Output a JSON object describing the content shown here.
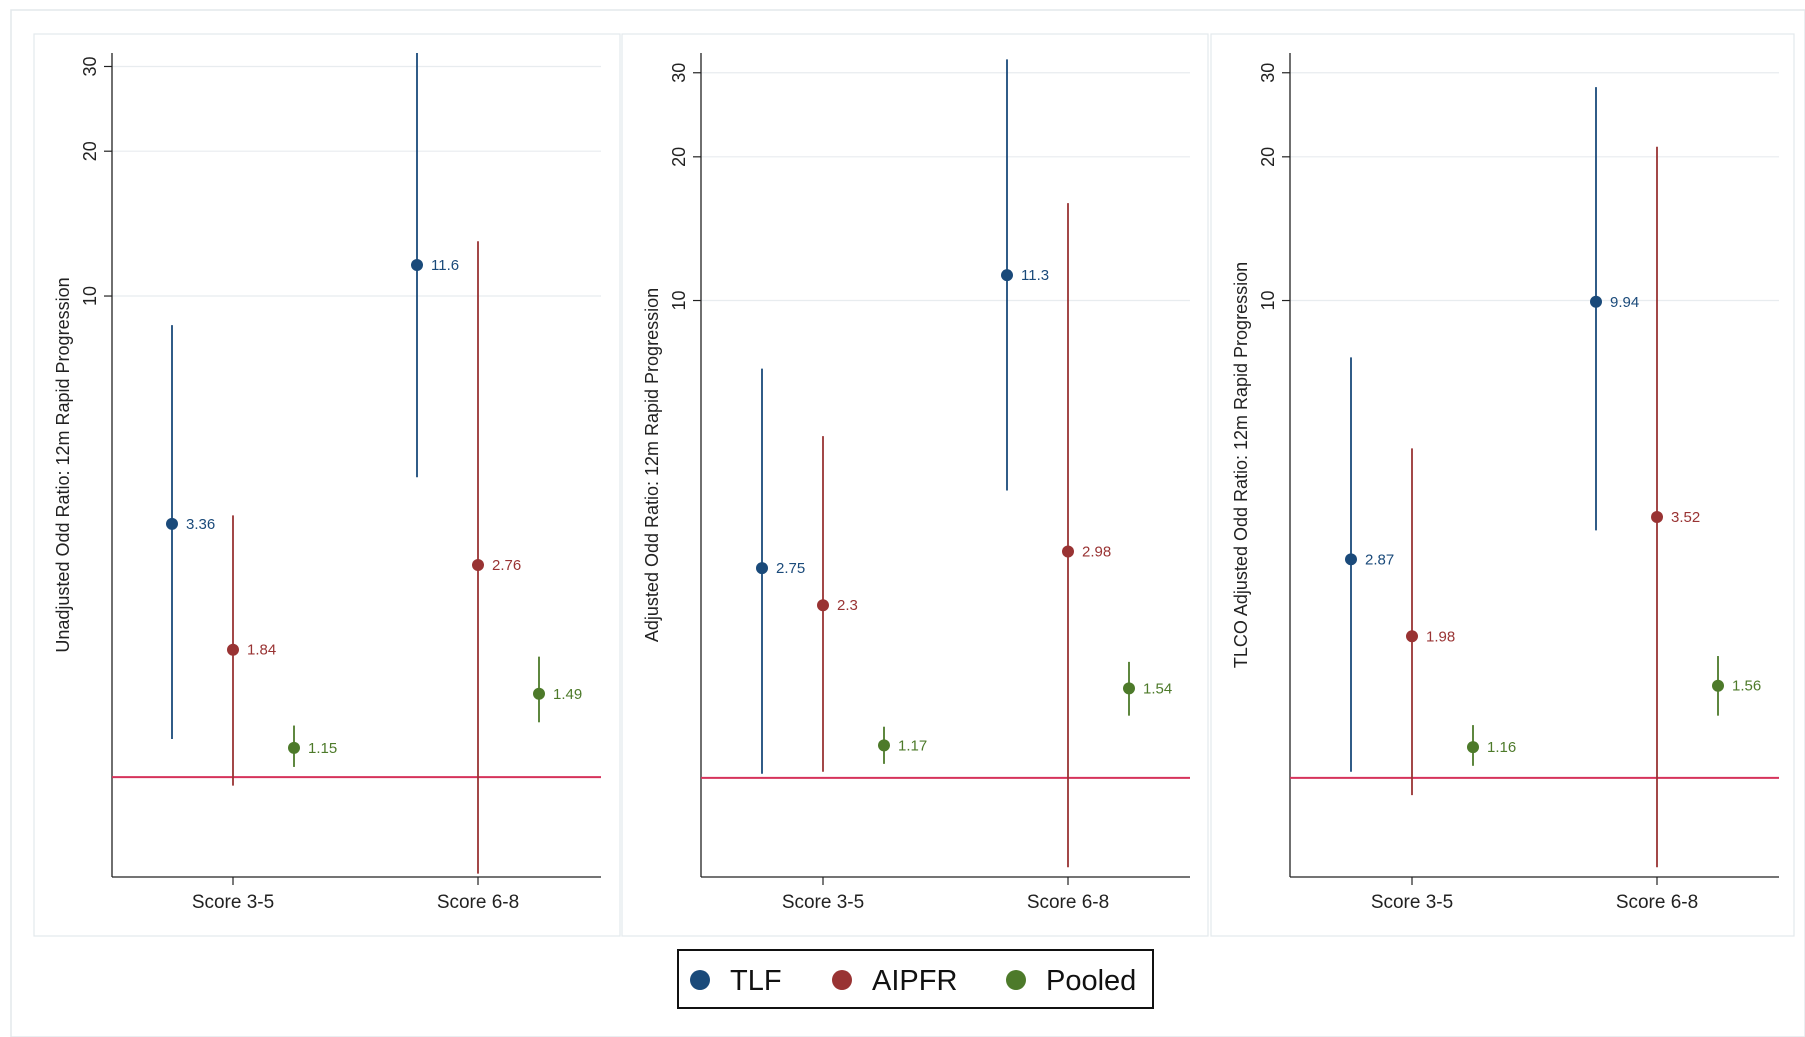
{
  "colors": {
    "TLF": "#1a4a7a",
    "AIPFR": "#993333",
    "Pooled": "#4d7a2a",
    "reference_line": "#d6335b",
    "axis": "#222222",
    "grid": "#e8ecef",
    "panel_border": "#e3e8ec"
  },
  "legend": {
    "placement": "bottom-center",
    "items": [
      {
        "label": "TLF",
        "color_key": "TLF"
      },
      {
        "label": "AIPFR",
        "color_key": "AIPFR"
      },
      {
        "label": "Pooled",
        "color_key": "Pooled"
      }
    ]
  },
  "chart_data": [
    {
      "type": "scatter",
      "subtype": "point estimates with confidence intervals",
      "ylabel": "Unadjusted Odd Ratio: 12m Rapid Progression",
      "yscale": "log",
      "ylim": [
        0.62,
        32
      ],
      "yticks": [
        10,
        20,
        30
      ],
      "reference_line_y": 1,
      "grid": true,
      "categories": [
        "Score 3-5",
        "Score 6-8"
      ],
      "series": [
        {
          "name": "TLF",
          "points": [
            {
              "category": "Score 3-5",
              "estimate": 3.36,
              "label": "3.36",
              "ci": [
                1.2,
                8.7
              ]
            },
            {
              "category": "Score 6-8",
              "estimate": 11.6,
              "label": "11.6",
              "ci": [
                4.2,
                32
              ]
            }
          ]
        },
        {
          "name": "AIPFR",
          "points": [
            {
              "category": "Score 3-5",
              "estimate": 1.84,
              "label": "1.84",
              "ci": [
                0.96,
                3.5
              ]
            },
            {
              "category": "Score 6-8",
              "estimate": 2.76,
              "label": "2.76",
              "ci": [
                0.63,
                13
              ]
            }
          ]
        },
        {
          "name": "Pooled",
          "points": [
            {
              "category": "Score 3-5",
              "estimate": 1.15,
              "label": "1.15",
              "ci": [
                1.05,
                1.28
              ]
            },
            {
              "category": "Score 6-8",
              "estimate": 1.49,
              "label": "1.49",
              "ci": [
                1.3,
                1.78
              ]
            }
          ]
        }
      ]
    },
    {
      "type": "scatter",
      "subtype": "point estimates with confidence intervals",
      "ylabel": "Adjusted Odd Ratio: 12m Rapid Progression",
      "yscale": "log",
      "ylim": [
        0.62,
        33
      ],
      "yticks": [
        10,
        20,
        30
      ],
      "reference_line_y": 1,
      "grid": true,
      "categories": [
        "Score 3-5",
        "Score 6-8"
      ],
      "series": [
        {
          "name": "TLF",
          "points": [
            {
              "category": "Score 3-5",
              "estimate": 2.75,
              "label": "2.75",
              "ci": [
                1.02,
                7.2
              ]
            },
            {
              "category": "Score 6-8",
              "estimate": 11.3,
              "label": "11.3",
              "ci": [
                4,
                32
              ]
            }
          ]
        },
        {
          "name": "AIPFR",
          "points": [
            {
              "category": "Score 3-5",
              "estimate": 2.3,
              "label": "2.3",
              "ci": [
                1.03,
                5.2
              ]
            },
            {
              "category": "Score 6-8",
              "estimate": 2.98,
              "label": "2.98",
              "ci": [
                0.65,
                16
              ]
            }
          ]
        },
        {
          "name": "Pooled",
          "points": [
            {
              "category": "Score 3-5",
              "estimate": 1.17,
              "label": "1.17",
              "ci": [
                1.07,
                1.28
              ]
            },
            {
              "category": "Score 6-8",
              "estimate": 1.54,
              "label": "1.54",
              "ci": [
                1.35,
                1.75
              ]
            }
          ]
        }
      ]
    },
    {
      "type": "scatter",
      "subtype": "point estimates with confidence intervals",
      "ylabel": "TLCO Adjusted Odd Ratio: 12m Rapid Progression",
      "yscale": "log",
      "ylim": [
        0.62,
        33
      ],
      "yticks": [
        10,
        20,
        30
      ],
      "reference_line_y": 1,
      "grid": true,
      "categories": [
        "Score 3-5",
        "Score 6-8"
      ],
      "series": [
        {
          "name": "TLF",
          "points": [
            {
              "category": "Score 3-5",
              "estimate": 2.87,
              "label": "2.87",
              "ci": [
                1.03,
                7.6
              ]
            },
            {
              "category": "Score 6-8",
              "estimate": 9.94,
              "label": "9.94",
              "ci": [
                3.3,
                28
              ]
            }
          ]
        },
        {
          "name": "AIPFR",
          "points": [
            {
              "category": "Score 3-5",
              "estimate": 1.98,
              "label": "1.98",
              "ci": [
                0.92,
                4.9
              ]
            },
            {
              "category": "Score 6-8",
              "estimate": 3.52,
              "label": "3.52",
              "ci": [
                0.65,
                21
              ]
            }
          ]
        },
        {
          "name": "Pooled",
          "points": [
            {
              "category": "Score 3-5",
              "estimate": 1.16,
              "label": "1.16",
              "ci": [
                1.06,
                1.29
              ]
            },
            {
              "category": "Score 6-8",
              "estimate": 1.56,
              "label": "1.56",
              "ci": [
                1.35,
                1.8
              ]
            }
          ]
        }
      ]
    }
  ]
}
